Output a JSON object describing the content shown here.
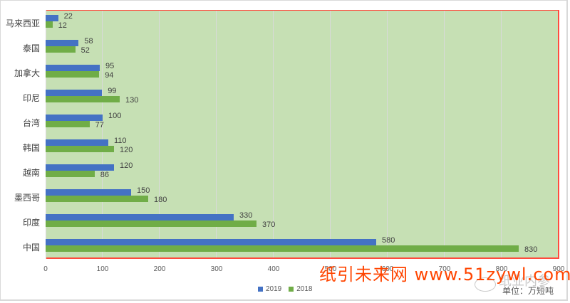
{
  "chart_data": {
    "type": "bar",
    "orientation": "horizontal",
    "title": "",
    "xlabel": "",
    "ylabel": "",
    "categories": [
      "马来西亚",
      "泰国",
      "加拿大",
      "印尼",
      "台湾",
      "韩国",
      "越南",
      "墨西哥",
      "印度",
      "中国"
    ],
    "series": [
      {
        "name": "2019",
        "color": "#4472c4",
        "values": [
          22,
          58,
          95,
          99,
          100,
          110,
          120,
          150,
          330,
          580
        ]
      },
      {
        "name": "2018",
        "color": "#70ad47",
        "values": [
          12,
          52,
          94,
          130,
          77,
          120,
          86,
          180,
          370,
          830
        ]
      }
    ],
    "xlim": [
      0,
      900
    ],
    "x_ticks": [
      "0",
      "100",
      "200",
      "300",
      "400",
      "500",
      "600",
      "700",
      "800",
      "900"
    ],
    "grid": true,
    "legend_position": "bottom",
    "plot_background": "#c6e0b4",
    "unit_label": "单位：万短吨"
  },
  "legend": {
    "items": [
      {
        "label": "2019",
        "color": "#4472c4"
      },
      {
        "label": "2018",
        "color": "#70ad47"
      }
    ]
  },
  "watermark": {
    "text": "纸引未来网 www.51zywl.com",
    "secondary": "纸业内参"
  },
  "unit": "单位：万短吨"
}
